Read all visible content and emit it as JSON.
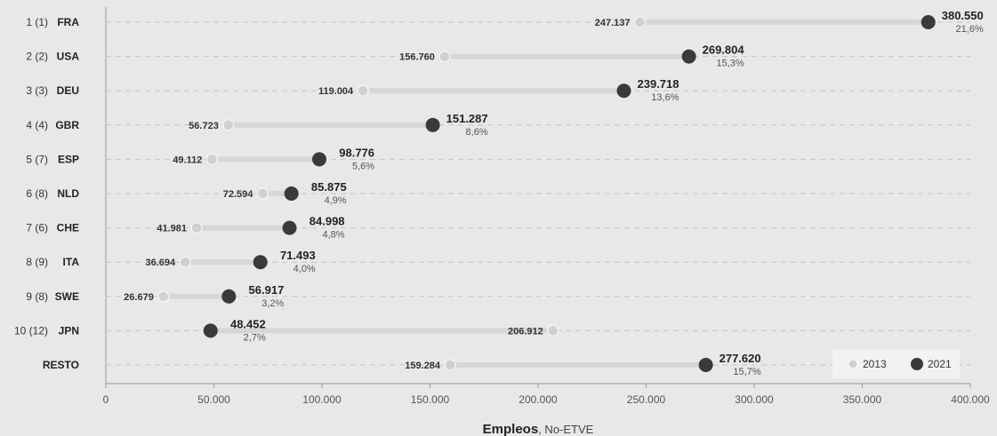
{
  "chart_data": {
    "type": "dumbbell",
    "xlabel_bold": "Empleos",
    "xlabel_rest": ", No-ETVE",
    "xlim": [
      0,
      400000
    ],
    "x_ticks": [
      0,
      50000,
      100000,
      150000,
      200000,
      250000,
      300000,
      350000,
      400000
    ],
    "x_tick_labels": [
      "0",
      "50.000",
      "100.000",
      "150.000",
      "200.000",
      "250.000",
      "300.000",
      "350.000",
      "400.000"
    ],
    "legend": {
      "position": "bottom-right",
      "series": [
        "2013",
        "2021"
      ]
    },
    "colors": {
      "s2013": "#d0d0d0",
      "s2021": "#3a3a3a",
      "bar": "#d6d6d6",
      "grid": "#c4c4c4",
      "axis": "#999999"
    },
    "rows": [
      {
        "rank": "1 (1)",
        "code": "FRA",
        "v2013": 247137,
        "v2013_label": "247.137",
        "v2021": 380550,
        "v2021_label": "380.550",
        "pct": "21,6%"
      },
      {
        "rank": "2 (2)",
        "code": "USA",
        "v2013": 156760,
        "v2013_label": "156.760",
        "v2021": 269804,
        "v2021_label": "269.804",
        "pct": "15,3%"
      },
      {
        "rank": "3 (3)",
        "code": "DEU",
        "v2013": 119004,
        "v2013_label": "119.004",
        "v2021": 239718,
        "v2021_label": "239.718",
        "pct": "13,6%"
      },
      {
        "rank": "4 (4)",
        "code": "GBR",
        "v2013": 56723,
        "v2013_label": "56.723",
        "v2021": 151287,
        "v2021_label": "151.287",
        "pct": "8,6%"
      },
      {
        "rank": "5 (7)",
        "code": "ESP",
        "v2013": 49112,
        "v2013_label": "49.112",
        "v2021": 98776,
        "v2021_label": "98.776",
        "pct": "5,6%"
      },
      {
        "rank": "6 (8)",
        "code": "NLD",
        "v2013": 72594,
        "v2013_label": "72.594",
        "v2021": 85875,
        "v2021_label": "85.875",
        "pct": "4,9%"
      },
      {
        "rank": "7 (6)",
        "code": "CHE",
        "v2013": 41981,
        "v2013_label": "41.981",
        "v2021": 84998,
        "v2021_label": "84.998",
        "pct": "4,8%"
      },
      {
        "rank": "8 (9)",
        "code": "ITA",
        "v2013": 36694,
        "v2013_label": "36.694",
        "v2021": 71493,
        "v2021_label": "71.493",
        "pct": "4,0%"
      },
      {
        "rank": "9 (8)",
        "code": "SWE",
        "v2013": 26679,
        "v2013_label": "26.679",
        "v2021": 56917,
        "v2021_label": "56.917",
        "pct": "3,2%"
      },
      {
        "rank": "10 (12)",
        "code": "JPN",
        "v2013": 206912,
        "v2013_label": "206.912",
        "v2021": 48452,
        "v2021_label": "48.452",
        "pct": "2,7%"
      },
      {
        "rank": "",
        "code": "RESTO",
        "v2013": 159284,
        "v2013_label": "159.284",
        "v2021": 277620,
        "v2021_label": "277.620",
        "pct": "15,7%"
      }
    ]
  }
}
